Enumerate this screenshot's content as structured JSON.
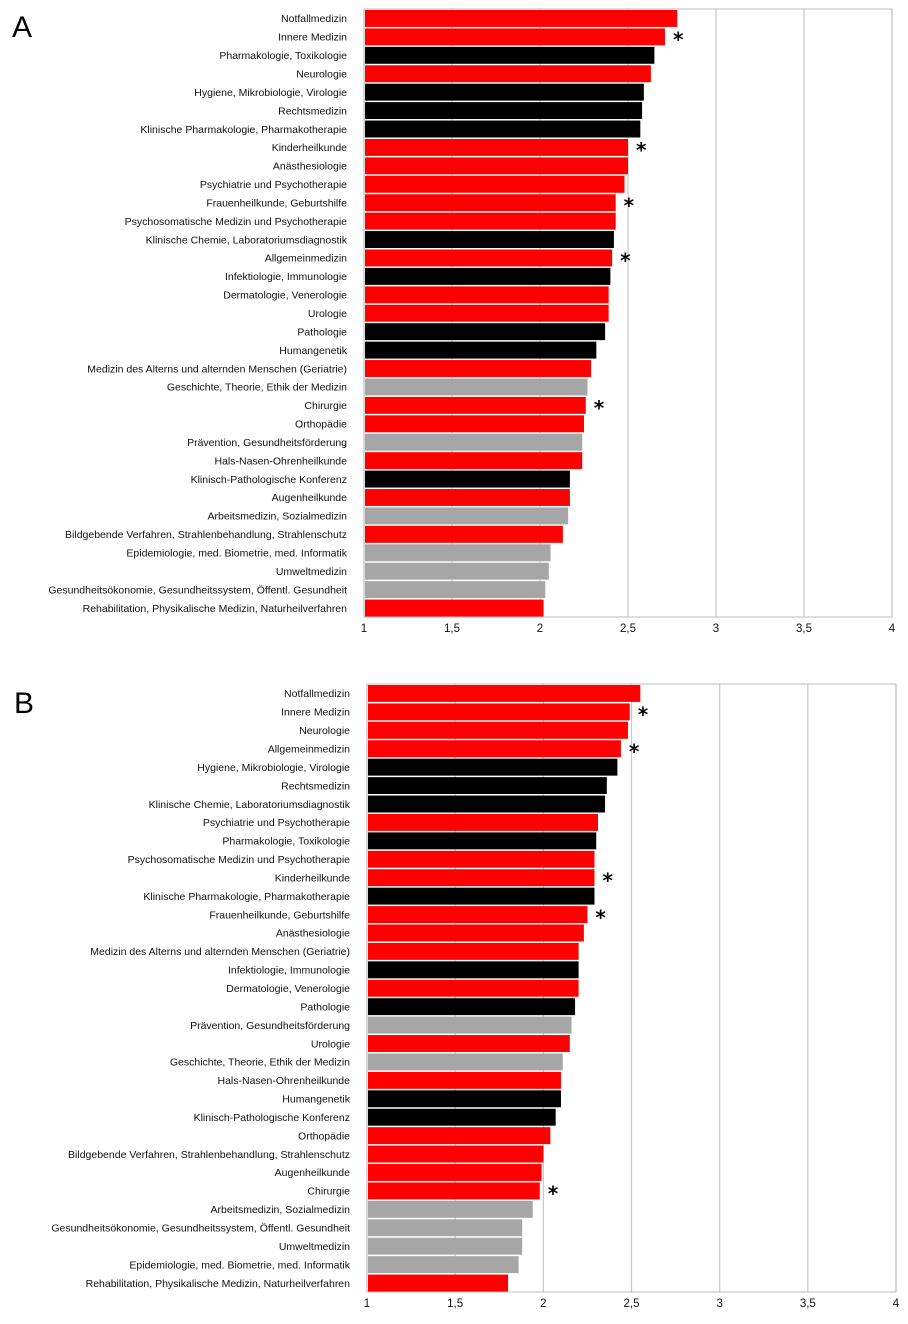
{
  "colors": {
    "red": "#ff0000",
    "black": "#000000",
    "gray": "#a6a6a6"
  },
  "chart_data": [
    {
      "type": "bar",
      "orientation": "horizontal",
      "panel_label": "A",
      "xlim": [
        1,
        4
      ],
      "xticks": [
        "1",
        "1,5",
        "2",
        "2,5",
        "3",
        "3,5",
        "4"
      ],
      "grid": true,
      "categories": [
        "Notfallmedizin",
        "Innere Medizin",
        "Pharmakologie, Toxikologie",
        "Neurologie",
        "Hygiene, Mikrobiologie, Virologie",
        "Rechtsmedizin",
        "Klinische Pharmakologie, Pharmakotherapie",
        "Kinderheilkunde",
        "Anästhesiologie",
        "Psychiatrie und Psychotherapie",
        "Frauenheilkunde, Geburtshilfe",
        "Psychosomatische Medizin und Psychotherapie",
        "Klinische Chemie, Laboratoriumsdiagnostik",
        "Allgemeinmedizin",
        "Infektiologie, Immunologie",
        "Dermatologie, Venerologie",
        "Urologie",
        "Pathologie",
        "Humangenetik",
        "Medizin des Alterns und alternden Menschen (Geriatrie)",
        "Geschichte, Theorie, Ethik der Medizin",
        "Chirurgie",
        "Orthopädie",
        "Prävention, Gesundheitsförderung",
        "Hals-Nasen-Ohrenheilkunde",
        "Klinisch-Pathologische Konferenz",
        "Augenheilkunde",
        "Arbeitsmedizin, Sozialmedizin",
        "Bildgebende Verfahren, Strahlenbehandlung, Strahlenschutz",
        "Epidemiologie, med. Biometrie, med. Informatik",
        "Umweltmedizin",
        "Gesundheitsökonomie, Gesundheitssystem, Öffentl. Gesundheit",
        "Rehabilitation, Physikalische Medizin, Naturheilverfahren"
      ],
      "values": [
        2.78,
        2.71,
        2.65,
        2.63,
        2.59,
        2.58,
        2.57,
        2.5,
        2.5,
        2.48,
        2.43,
        2.43,
        2.42,
        2.41,
        2.4,
        2.39,
        2.39,
        2.37,
        2.32,
        2.29,
        2.27,
        2.26,
        2.25,
        2.24,
        2.24,
        2.17,
        2.17,
        2.16,
        2.13,
        2.06,
        2.05,
        2.03,
        2.02
      ],
      "bar_colors": [
        "red",
        "red",
        "black",
        "red",
        "black",
        "black",
        "black",
        "red",
        "red",
        "red",
        "red",
        "red",
        "black",
        "red",
        "black",
        "red",
        "red",
        "black",
        "black",
        "red",
        "gray",
        "red",
        "red",
        "gray",
        "red",
        "black",
        "red",
        "gray",
        "red",
        "gray",
        "gray",
        "gray",
        "red"
      ],
      "asterisks": [
        "Innere Medizin",
        "Kinderheilkunde",
        "Frauenheilkunde, Geburtshilfe",
        "Allgemeinmedizin",
        "Chirurgie"
      ],
      "asterisk_symbol": "*"
    },
    {
      "type": "bar",
      "orientation": "horizontal",
      "panel_label": "B",
      "xlim": [
        1,
        4
      ],
      "xticks": [
        "1",
        "1,5",
        "2",
        "2,5",
        "3",
        "3,5",
        "4"
      ],
      "grid": true,
      "categories": [
        "Notfallmedizin",
        "Innere Medizin",
        "Neurologie",
        "Allgemeinmedizin",
        "Hygiene, Mikrobiologie, Virologie",
        "Rechtsmedizin",
        "Klinische Chemie, Laboratoriumsdiagnostik",
        "Psychiatrie und Psychotherapie",
        "Pharmakologie, Toxikologie",
        "Psychosomatische Medizin und Psychotherapie",
        "Kinderheilkunde",
        "Klinische Pharmakologie, Pharmakotherapie",
        "Frauenheilkunde, Geburtshilfe",
        "Anästhesiologie",
        "Medizin des Alterns und alternden Menschen (Geriatrie)",
        "Infektiologie, Immunologie",
        "Dermatologie, Venerologie",
        "Pathologie",
        "Prävention, Gesundheitsförderung",
        "Urologie",
        "Geschichte, Theorie, Ethik der Medizin",
        "Hals-Nasen-Ohrenheilkunde",
        "Humangenetik",
        "Klinisch-Pathologische Konferenz",
        "Orthopädie",
        "Bildgebende Verfahren, Strahlenbehandlung, Strahlenschutz",
        "Augenheilkunde",
        "Chirurgie",
        "Arbeitsmedizin, Sozialmedizin",
        "Gesundheitsökonomie, Gesundheitssystem, Öffentl. Gesundheit",
        "Umweltmedizin",
        "Epidemiologie, med. Biometrie, med. Informatik",
        "Rehabilitation, Physikalische Medizin, Naturheilverfahren"
      ],
      "values": [
        2.55,
        2.49,
        2.48,
        2.44,
        2.42,
        2.36,
        2.35,
        2.31,
        2.3,
        2.29,
        2.29,
        2.29,
        2.25,
        2.23,
        2.2,
        2.2,
        2.2,
        2.18,
        2.16,
        2.15,
        2.11,
        2.1,
        2.1,
        2.07,
        2.04,
        2.0,
        1.99,
        1.98,
        1.94,
        1.88,
        1.88,
        1.86,
        1.8
      ],
      "bar_colors": [
        "red",
        "red",
        "red",
        "red",
        "black",
        "black",
        "black",
        "red",
        "black",
        "red",
        "red",
        "black",
        "red",
        "red",
        "red",
        "black",
        "red",
        "black",
        "gray",
        "red",
        "gray",
        "red",
        "black",
        "black",
        "red",
        "red",
        "red",
        "red",
        "gray",
        "gray",
        "gray",
        "gray",
        "red"
      ],
      "asterisks": [
        "Innere Medizin",
        "Allgemeinmedizin",
        "Kinderheilkunde",
        "Frauenheilkunde, Geburtshilfe",
        "Chirurgie"
      ],
      "asterisk_symbol": "*"
    }
  ]
}
